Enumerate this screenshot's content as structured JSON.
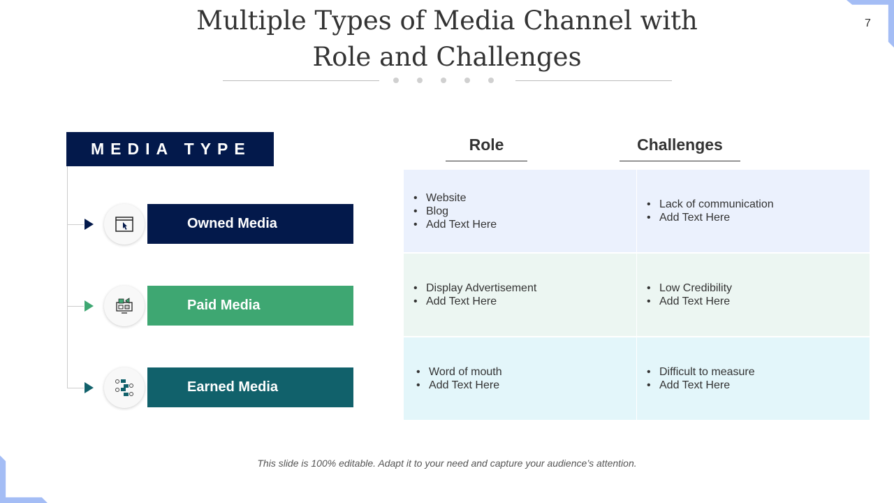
{
  "slide": {
    "title_line1": "Multiple Types of Media Channel with",
    "title_line2": "Role and Challenges",
    "page_number": "7",
    "footer": "This slide is 100% editable.  Adapt it to your need and capture your audience’s attention."
  },
  "media_header": "MEDIA TYPE",
  "columns": {
    "role": "Role",
    "challenges": "Challenges"
  },
  "rows": [
    {
      "media": "Owned Media",
      "icon": "browser-cursor-icon",
      "color": "#03194b",
      "row_bg": "#ebf1fd",
      "role": [
        "Website",
        "Blog",
        "Add Text Here"
      ],
      "challenges": [
        "Lack of communication",
        "Add Text Here"
      ]
    },
    {
      "media": "Paid Media",
      "icon": "monitor-advertising-icon",
      "color": "#3ea772",
      "row_bg": "#ecf6f2",
      "role": [
        "Display Advertisement",
        "Add Text Here"
      ],
      "challenges": [
        "Low Credibility",
        "Add Text Here"
      ]
    },
    {
      "media": "Earned Media",
      "icon": "people-sharing-icon",
      "color": "#11616b",
      "row_bg": "#e3f6fa",
      "role": [
        "Word of mouth",
        "Add Text Here"
      ],
      "challenges": [
        "Difficult to measure",
        "Add Text Here"
      ]
    }
  ]
}
